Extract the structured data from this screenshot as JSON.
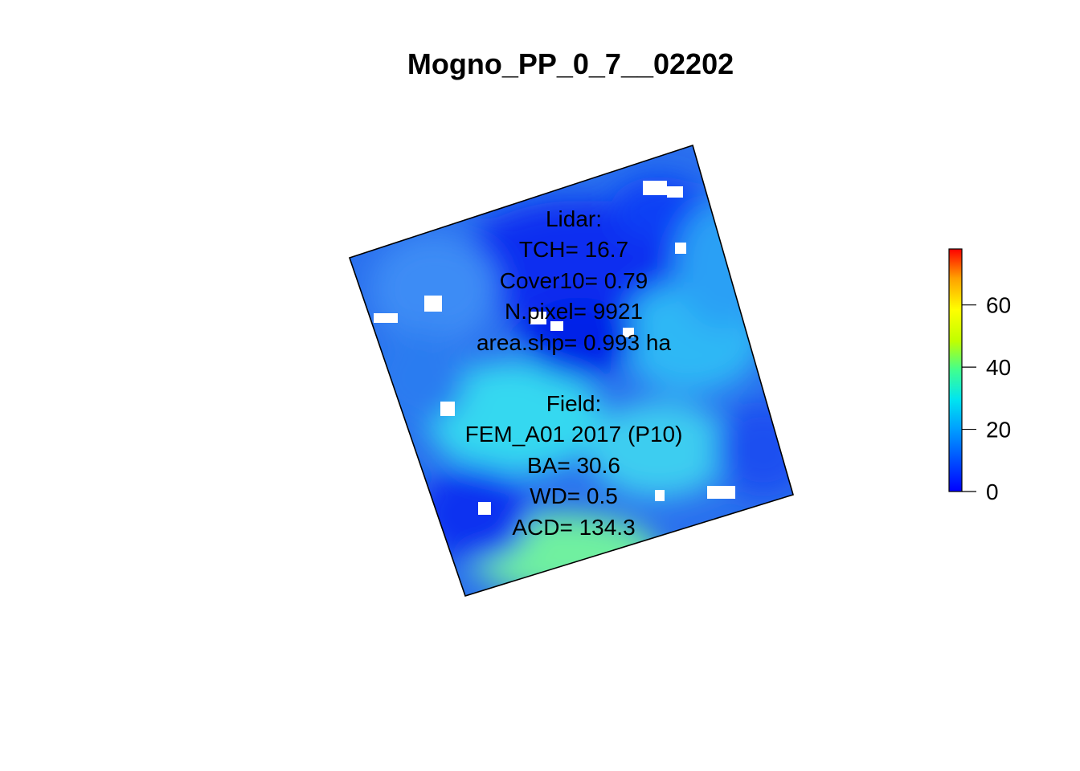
{
  "title": "Mogno_PP_0_7__02202",
  "annotation": {
    "lidar_lines": [
      "Lidar:",
      "TCH= 16.7",
      "Cover10= 0.79",
      "N.pixel= 9921",
      "area.shp= 0.993 ha"
    ],
    "field_lines": [
      "Field:",
      "FEM_A01 2017 (P10)",
      "BA= 30.6",
      "WD= 0.5",
      "ACD= 134.3"
    ]
  },
  "legend": {
    "min": 0,
    "max": 78,
    "ticks": [
      {
        "value": 0,
        "label": "0"
      },
      {
        "value": 20,
        "label": "20"
      },
      {
        "value": 40,
        "label": "40"
      },
      {
        "value": 60,
        "label": "60"
      }
    ],
    "colors": [
      "#0000ff",
      "#0050ff",
      "#00a0ff",
      "#00e5f0",
      "#40ff90",
      "#c0ff00",
      "#ffff00",
      "#ffa000",
      "#ff0000"
    ]
  },
  "raster": {
    "fill_color": "#1a6cf0",
    "nodata_color": "#ffffff"
  }
}
